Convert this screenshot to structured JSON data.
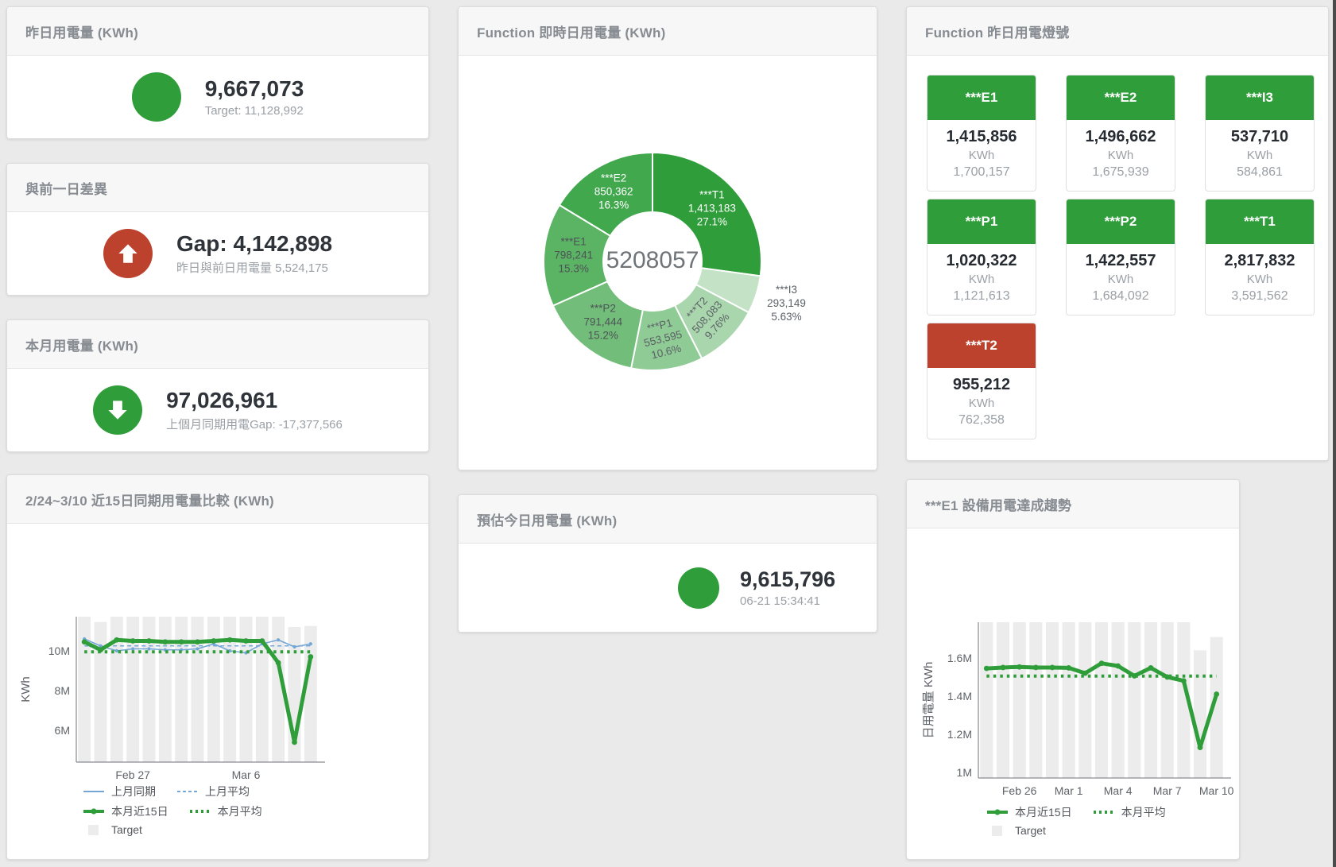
{
  "page": {
    "background": "#eaeaea"
  },
  "colors": {
    "green": "#2f9e3a",
    "red": "#bc422e",
    "blue": "#74a7d6",
    "gray_bar": "#ececec",
    "title_text": "#878c92",
    "number_text": "#2f343a",
    "subtitle_text": "#9aa0a6"
  },
  "cards": {
    "yesterday": {
      "title": "昨日用電量 (KWh)",
      "value": "9,667,073",
      "subtitle": "Target: 11,128,992",
      "indicator": "green-circle"
    },
    "diff_prev_day": {
      "title": "與前一日差異",
      "value": "Gap: 4,142,898",
      "subtitle": "昨日與前日用電量 5,524,175",
      "indicator": "red-circle-up-arrow"
    },
    "month": {
      "title": "本月用電量 (KWh)",
      "value": "97,026,961",
      "subtitle": "上個月同期用電Gap: -17,377,566",
      "indicator": "green-circle-down-arrow"
    },
    "estimate_today": {
      "title": "預估今日用電量 (KWh)",
      "value": "9,615,796",
      "subtitle": "06-21 15:34:41",
      "indicator": "green-circle"
    },
    "realtime": {
      "title": "Function 即時日用電量 (KWh)"
    },
    "lights": {
      "title": "Function 昨日用電燈號",
      "tiles": [
        {
          "label": "***E1",
          "value": "1,415,856",
          "unit": "KWh",
          "target": "1,700,157",
          "status": "green"
        },
        {
          "label": "***E2",
          "value": "1,496,662",
          "unit": "KWh",
          "target": "1,675,939",
          "status": "green"
        },
        {
          "label": "***I3",
          "value": "537,710",
          "unit": "KWh",
          "target": "584,861",
          "status": "green"
        },
        {
          "label": "***P1",
          "value": "1,020,322",
          "unit": "KWh",
          "target": "1,121,613",
          "status": "green"
        },
        {
          "label": "***P2",
          "value": "1,422,557",
          "unit": "KWh",
          "target": "1,684,092",
          "status": "green"
        },
        {
          "label": "***T1",
          "value": "2,817,832",
          "unit": "KWh",
          "target": "3,591,562",
          "status": "green"
        },
        {
          "label": "***T2",
          "value": "955,212",
          "unit": "KWh",
          "target": "762,358",
          "status": "red"
        }
      ]
    },
    "compare15": {
      "title": "2/24~3/10 近15日同期用電量比較 (KWh)"
    },
    "e1_trend": {
      "title": "***E1 設備用電達成趨勢"
    }
  },
  "chart_data": [
    {
      "id": "realtime_donut",
      "type": "pie",
      "title": "Function 即時日用電量 (KWh)",
      "center_total": "5208057",
      "start_angle": "top",
      "direction": "clockwise",
      "slices": [
        {
          "name": "***T1",
          "value": 1413183,
          "pct": "27.1%",
          "color": "#2f9e3a",
          "label": "inside",
          "label_color": "#ffffff",
          "rotate": 0
        },
        {
          "name": "***I3",
          "value": 293149,
          "pct": "5.63%",
          "color": "#c3e2c6",
          "label": "outside",
          "label_color": "#5c6166",
          "rotate": 0
        },
        {
          "name": "***T2",
          "value": 508083,
          "pct": "9.76%",
          "color": "#a9d6ad",
          "label": "inside",
          "label_color": "#5c6166",
          "rotate": -48
        },
        {
          "name": "***P1",
          "value": 553595,
          "pct": "10.6%",
          "color": "#8fcb95",
          "label": "inside",
          "label_color": "#5c6166",
          "rotate": -14
        },
        {
          "name": "***P2",
          "value": 791444,
          "pct": "15.2%",
          "color": "#71bd79",
          "label": "inside",
          "label_color": "#4e5357",
          "rotate": 0
        },
        {
          "name": "***E1",
          "value": 798241,
          "pct": "15.3%",
          "color": "#5bb364",
          "label": "inside",
          "label_color": "#4e5357",
          "rotate": 0
        },
        {
          "name": "***E2",
          "value": 850362,
          "pct": "16.3%",
          "color": "#42a84e",
          "label": "inside",
          "label_color": "#ffffff",
          "rotate": 0
        }
      ]
    },
    {
      "id": "compare15",
      "type": "line+bar",
      "title": "2/24~3/10 近15日同期用電量比較 (KWh)",
      "ylabel": "KWh",
      "x_is_days": "2/24 to 3/10, 15 days",
      "x_labels": [
        {
          "text": "Feb 27",
          "index": 3
        },
        {
          "text": "Mar 6",
          "index": 10
        }
      ],
      "y_ticks": [
        {
          "text": "6M",
          "value": 6
        },
        {
          "text": "8M",
          "value": 8
        },
        {
          "text": "10M",
          "value": 10
        }
      ],
      "ylim": [
        4.4,
        11.72
      ],
      "unit": "millions KWh",
      "grid": false,
      "series": [
        {
          "name": "Target",
          "type": "bar",
          "color": "#ececec",
          "values": [
            11.72,
            11.45,
            11.72,
            11.72,
            11.72,
            11.72,
            11.72,
            11.72,
            11.72,
            11.72,
            11.72,
            11.72,
            11.72,
            11.2,
            11.25
          ]
        },
        {
          "name": "上月同期",
          "type": "line",
          "color": "#74a7d6",
          "width": 1.6,
          "values": [
            10.6,
            10.25,
            10.0,
            10.1,
            10.1,
            10.05,
            10.05,
            10.1,
            10.35,
            10.0,
            9.9,
            10.35,
            10.55,
            10.2,
            10.35
          ]
        },
        {
          "name": "上月平均",
          "type": "line-dashed",
          "color": "#74a7d6",
          "width": 1.6,
          "const": 10.25
        },
        {
          "name": "本月近15日",
          "type": "line",
          "color": "#2f9e3a",
          "width": 5,
          "values": [
            10.45,
            10.05,
            10.55,
            10.5,
            10.5,
            10.45,
            10.45,
            10.45,
            10.5,
            10.55,
            10.5,
            10.5,
            9.4,
            5.4,
            9.7
          ]
        },
        {
          "name": "本月平均",
          "type": "line-dotted",
          "color": "#2f9e3a",
          "width": 4,
          "const": 9.95
        }
      ],
      "legend_rows": [
        [
          "上月同期",
          "上月平均"
        ],
        [
          "本月近15日",
          "本月平均"
        ],
        [
          "Target"
        ]
      ],
      "legend_position": "bottom-left"
    },
    {
      "id": "e1_trend",
      "type": "line+bar",
      "title": "***E1 設備用電達成趨勢",
      "ylabel": "日用電量 KWh",
      "x_is_days": "2/24 to 3/10, 15 days",
      "x_labels": [
        {
          "text": "Feb 26",
          "index": 2
        },
        {
          "text": "Mar 1",
          "index": 5
        },
        {
          "text": "Mar 4",
          "index": 8
        },
        {
          "text": "Mar 7",
          "index": 11
        },
        {
          "text": "Mar 10",
          "index": 14
        }
      ],
      "y_ticks": [
        {
          "text": "1M",
          "value": 1.0
        },
        {
          "text": "1.2M",
          "value": 1.2
        },
        {
          "text": "1.4M",
          "value": 1.4
        },
        {
          "text": "1.6M",
          "value": 1.6
        }
      ],
      "ylim": [
        0.97,
        1.7875
      ],
      "unit": "millions KWh",
      "grid": false,
      "series": [
        {
          "name": "Target",
          "type": "bar",
          "color": "#ececec",
          "values": [
            1.7875,
            1.7875,
            1.7875,
            1.7875,
            1.7875,
            1.7875,
            1.7875,
            1.7875,
            1.7875,
            1.7875,
            1.7875,
            1.7875,
            1.7875,
            1.64,
            1.71
          ]
        },
        {
          "name": "本月近15日",
          "type": "line",
          "color": "#2f9e3a",
          "width": 5,
          "values": [
            1.545,
            1.55,
            1.553,
            1.55,
            1.55,
            1.548,
            1.52,
            1.572,
            1.558,
            1.506,
            1.548,
            1.5,
            1.48,
            1.13,
            1.41
          ]
        },
        {
          "name": "本月平均",
          "type": "line-dotted",
          "color": "#2f9e3a",
          "width": 4,
          "const": 1.505
        }
      ],
      "legend_rows": [
        [
          "本月近15日",
          "本月平均"
        ],
        [
          "Target"
        ]
      ],
      "legend_position": "bottom-left"
    }
  ]
}
